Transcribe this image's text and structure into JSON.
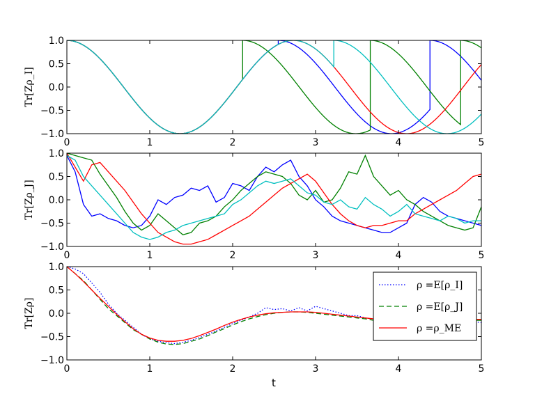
{
  "chart_data": [
    {
      "type": "line",
      "title": "",
      "xlabel": "",
      "ylabel": "Tr[Zρ_I]",
      "xlim": [
        0,
        5
      ],
      "ylim": [
        -1,
        1
      ],
      "xticks": [
        "0",
        "1",
        "2",
        "3",
        "4",
        "5"
      ],
      "yticks": [
        "1.0",
        "0.5",
        "0.0",
        "−0.5",
        "−1.0"
      ],
      "grid": false,
      "omega": 2.3,
      "series": [
        {
          "color": "#0000ff",
          "style": "solid",
          "jumps": [
            2.55,
            4.38
          ]
        },
        {
          "color": "#008000",
          "style": "solid",
          "jumps": [
            2.12,
            3.66,
            4.75
          ]
        },
        {
          "color": "#ff0000",
          "style": "solid",
          "jumps": []
        },
        {
          "color": "#00bfbf",
          "style": "solid",
          "jumps": [
            3.22
          ]
        }
      ]
    },
    {
      "type": "line",
      "title": "",
      "xlabel": "",
      "ylabel": "Tr[Zρ_J]",
      "xlim": [
        0,
        5
      ],
      "ylim": [
        -1,
        1
      ],
      "xticks": [
        "0",
        "1",
        "2",
        "3",
        "4",
        "5"
      ],
      "yticks": [
        "1.0",
        "0.5",
        "0.0",
        "−0.5",
        "−1.0"
      ],
      "grid": false,
      "series": [
        {
          "color": "#0000ff",
          "style": "solid",
          "x": [
            0,
            0.1,
            0.2,
            0.3,
            0.4,
            0.5,
            0.6,
            0.7,
            0.8,
            0.9,
            1.0,
            1.1,
            1.2,
            1.3,
            1.4,
            1.5,
            1.6,
            1.7,
            1.8,
            1.9,
            2.0,
            2.1,
            2.2,
            2.3,
            2.4,
            2.5,
            2.6,
            2.7,
            2.8,
            2.9,
            3.0,
            3.1,
            3.2,
            3.3,
            3.4,
            3.5,
            3.6,
            3.7,
            3.8,
            3.9,
            4.0,
            4.1,
            4.2,
            4.3,
            4.4,
            4.5,
            4.6,
            4.7,
            4.8,
            4.9,
            5.0
          ],
          "y": [
            0.95,
            0.6,
            -0.1,
            -0.35,
            -0.3,
            -0.4,
            -0.45,
            -0.55,
            -0.6,
            -0.55,
            -0.35,
            0.0,
            -0.1,
            0.05,
            0.1,
            0.25,
            0.2,
            0.3,
            -0.05,
            0.05,
            0.35,
            0.3,
            0.2,
            0.5,
            0.7,
            0.6,
            0.75,
            0.85,
            0.5,
            0.3,
            0.0,
            -0.15,
            -0.35,
            -0.45,
            -0.5,
            -0.55,
            -0.6,
            -0.65,
            -0.7,
            -0.7,
            -0.6,
            -0.5,
            -0.1,
            0.05,
            -0.05,
            -0.25,
            -0.35,
            -0.4,
            -0.45,
            -0.5,
            -0.55
          ]
        },
        {
          "color": "#008000",
          "style": "solid",
          "x": [
            0,
            0.1,
            0.2,
            0.3,
            0.4,
            0.5,
            0.6,
            0.7,
            0.8,
            0.9,
            1.0,
            1.1,
            1.2,
            1.3,
            1.4,
            1.5,
            1.6,
            1.7,
            1.8,
            1.9,
            2.0,
            2.1,
            2.2,
            2.3,
            2.4,
            2.5,
            2.6,
            2.7,
            2.8,
            2.9,
            3.0,
            3.1,
            3.2,
            3.3,
            3.4,
            3.5,
            3.6,
            3.7,
            3.8,
            3.9,
            4.0,
            4.1,
            4.2,
            4.3,
            4.4,
            4.5,
            4.6,
            4.7,
            4.8,
            4.9,
            5.0
          ],
          "y": [
            1.0,
            0.95,
            0.9,
            0.85,
            0.55,
            0.3,
            0.05,
            -0.25,
            -0.5,
            -0.65,
            -0.55,
            -0.3,
            -0.45,
            -0.6,
            -0.75,
            -0.7,
            -0.5,
            -0.45,
            -0.35,
            -0.15,
            0.0,
            0.2,
            0.35,
            0.5,
            0.6,
            0.55,
            0.5,
            0.35,
            0.1,
            0.0,
            0.2,
            -0.05,
            0.0,
            0.25,
            0.6,
            0.55,
            0.95,
            0.5,
            0.3,
            0.1,
            0.2,
            0.0,
            -0.1,
            -0.25,
            -0.35,
            -0.45,
            -0.55,
            -0.6,
            -0.65,
            -0.6,
            -0.15
          ]
        },
        {
          "color": "#ff0000",
          "style": "solid",
          "x": [
            0,
            0.1,
            0.2,
            0.3,
            0.4,
            0.5,
            0.6,
            0.7,
            0.8,
            0.9,
            1.0,
            1.1,
            1.2,
            1.3,
            1.4,
            1.5,
            1.6,
            1.7,
            1.8,
            1.9,
            2.0,
            2.1,
            2.2,
            2.3,
            2.4,
            2.5,
            2.6,
            2.7,
            2.8,
            2.9,
            3.0,
            3.1,
            3.2,
            3.3,
            3.4,
            3.5,
            3.6,
            3.7,
            3.8,
            3.9,
            4.0,
            4.1,
            4.2,
            4.3,
            4.4,
            4.5,
            4.6,
            4.7,
            4.8,
            4.9,
            5.0
          ],
          "y": [
            1.0,
            0.7,
            0.4,
            0.75,
            0.8,
            0.6,
            0.4,
            0.2,
            -0.05,
            -0.3,
            -0.5,
            -0.7,
            -0.8,
            -0.9,
            -0.95,
            -0.95,
            -0.9,
            -0.85,
            -0.75,
            -0.65,
            -0.55,
            -0.45,
            -0.35,
            -0.2,
            -0.05,
            0.1,
            0.25,
            0.35,
            0.45,
            0.55,
            0.4,
            0.15,
            -0.1,
            -0.3,
            -0.45,
            -0.55,
            -0.6,
            -0.55,
            -0.55,
            -0.5,
            -0.45,
            -0.45,
            -0.3,
            -0.2,
            -0.1,
            0.0,
            0.1,
            0.2,
            0.35,
            0.5,
            0.55
          ]
        },
        {
          "color": "#00bfbf",
          "style": "solid",
          "x": [
            0,
            0.1,
            0.2,
            0.3,
            0.4,
            0.5,
            0.6,
            0.7,
            0.8,
            0.9,
            1.0,
            1.1,
            1.2,
            1.3,
            1.4,
            1.5,
            1.6,
            1.7,
            1.8,
            1.9,
            2.0,
            2.1,
            2.2,
            2.3,
            2.4,
            2.5,
            2.6,
            2.7,
            2.8,
            2.9,
            3.0,
            3.1,
            3.2,
            3.3,
            3.4,
            3.5,
            3.6,
            3.7,
            3.8,
            3.9,
            4.0,
            4.1,
            4.2,
            4.3,
            4.4,
            4.5,
            4.6,
            4.7,
            4.8,
            4.9,
            5.0
          ],
          "y": [
            0.95,
            0.85,
            0.5,
            0.3,
            0.1,
            -0.1,
            -0.3,
            -0.5,
            -0.7,
            -0.8,
            -0.85,
            -0.8,
            -0.7,
            -0.65,
            -0.55,
            -0.5,
            -0.45,
            -0.4,
            -0.35,
            -0.3,
            -0.1,
            0.0,
            0.15,
            0.3,
            0.4,
            0.35,
            0.4,
            0.45,
            0.3,
            0.15,
            0.1,
            -0.05,
            -0.1,
            0.0,
            -0.15,
            -0.2,
            0.05,
            -0.1,
            -0.2,
            -0.35,
            -0.25,
            -0.1,
            -0.3,
            -0.35,
            -0.4,
            -0.45,
            -0.35,
            -0.4,
            -0.5,
            -0.45,
            -0.45
          ]
        }
      ]
    },
    {
      "type": "line",
      "title": "",
      "xlabel": "t",
      "ylabel": "Tr[Zρ]",
      "xlim": [
        0,
        5
      ],
      "ylim": [
        -1,
        1
      ],
      "xticks": [
        "0",
        "1",
        "2",
        "3",
        "4",
        "5"
      ],
      "yticks": [
        "1.0",
        "0.5",
        "0.0",
        "−0.5",
        "−1.0"
      ],
      "grid": false,
      "legend_position": "top-right",
      "series": [
        {
          "name": "ρ =E[ρ_I]",
          "color": "#0000ff",
          "style": "dotted",
          "x": [
            0,
            0.1,
            0.2,
            0.3,
            0.4,
            0.5,
            0.6,
            0.7,
            0.8,
            0.9,
            1.0,
            1.1,
            1.2,
            1.3,
            1.4,
            1.5,
            1.6,
            1.7,
            1.8,
            1.9,
            2.0,
            2.1,
            2.2,
            2.3,
            2.4,
            2.5,
            2.6,
            2.7,
            2.8,
            2.9,
            3.0,
            3.1,
            3.2,
            3.3,
            3.4,
            3.5,
            3.6,
            3.7,
            3.8,
            3.9,
            4.0,
            4.1,
            4.2,
            4.3,
            4.4,
            4.5,
            4.6,
            4.7,
            4.8,
            4.9,
            5.0
          ],
          "y": [
            1.0,
            0.95,
            0.85,
            0.65,
            0.45,
            0.2,
            0.0,
            -0.15,
            -0.3,
            -0.45,
            -0.55,
            -0.6,
            -0.63,
            -0.65,
            -0.62,
            -0.58,
            -0.52,
            -0.45,
            -0.38,
            -0.3,
            -0.22,
            -0.15,
            -0.08,
            0.0,
            0.12,
            0.08,
            0.1,
            0.05,
            0.12,
            0.05,
            0.15,
            0.1,
            0.05,
            0.0,
            -0.05,
            -0.05,
            -0.1,
            -0.12,
            -0.15,
            -0.15,
            -0.1,
            -0.12,
            -0.12,
            -0.15,
            -0.1,
            -0.15,
            -0.15,
            -0.12,
            -0.15,
            -0.18,
            -0.2
          ]
        },
        {
          "name": "ρ =E[ρ_J]",
          "color": "#008000",
          "style": "dashed",
          "x": [
            0,
            0.1,
            0.2,
            0.3,
            0.4,
            0.5,
            0.6,
            0.7,
            0.8,
            0.9,
            1.0,
            1.1,
            1.2,
            1.3,
            1.4,
            1.5,
            1.6,
            1.7,
            1.8,
            1.9,
            2.0,
            2.1,
            2.2,
            2.3,
            2.4,
            2.5,
            2.6,
            2.7,
            2.8,
            2.9,
            3.0,
            3.1,
            3.2,
            3.3,
            3.4,
            3.5,
            3.6,
            3.7,
            3.8,
            3.9,
            4.0,
            4.1,
            4.2,
            4.3,
            4.4,
            4.5,
            4.6,
            4.7,
            4.8,
            4.9,
            5.0
          ],
          "y": [
            1.0,
            0.85,
            0.7,
            0.5,
            0.3,
            0.1,
            -0.05,
            -0.2,
            -0.35,
            -0.45,
            -0.55,
            -0.62,
            -0.66,
            -0.67,
            -0.65,
            -0.6,
            -0.55,
            -0.48,
            -0.4,
            -0.33,
            -0.25,
            -0.18,
            -0.12,
            -0.07,
            -0.03,
            0.0,
            0.02,
            0.03,
            0.03,
            0.02,
            0.0,
            -0.02,
            -0.04,
            -0.06,
            -0.08,
            -0.1,
            -0.12,
            -0.15,
            -0.14,
            -0.15,
            -0.13,
            -0.14,
            -0.14,
            -0.15,
            -0.12,
            -0.14,
            -0.15,
            -0.14,
            -0.15,
            -0.15,
            -0.15
          ]
        },
        {
          "name": "ρ =ρ_ME",
          "color": "#ff0000",
          "style": "solid",
          "x": [
            0,
            0.1,
            0.2,
            0.3,
            0.4,
            0.5,
            0.6,
            0.7,
            0.8,
            0.9,
            1.0,
            1.1,
            1.2,
            1.3,
            1.4,
            1.5,
            1.6,
            1.7,
            1.8,
            1.9,
            2.0,
            2.1,
            2.2,
            2.3,
            2.4,
            2.5,
            2.6,
            2.7,
            2.8,
            2.9,
            3.0,
            3.1,
            3.2,
            3.3,
            3.4,
            3.5,
            3.6,
            3.7,
            3.8,
            3.9,
            4.0,
            4.1,
            4.2,
            4.3,
            4.4,
            4.5,
            4.6,
            4.7,
            4.8,
            4.9,
            5.0
          ],
          "y": [
            1.0,
            0.85,
            0.68,
            0.5,
            0.32,
            0.15,
            -0.02,
            -0.18,
            -0.33,
            -0.45,
            -0.53,
            -0.58,
            -0.6,
            -0.6,
            -0.58,
            -0.54,
            -0.48,
            -0.41,
            -0.34,
            -0.26,
            -0.19,
            -0.13,
            -0.08,
            -0.04,
            -0.01,
            0.01,
            0.02,
            0.03,
            0.03,
            0.03,
            0.02,
            0.0,
            -0.02,
            -0.04,
            -0.06,
            -0.08,
            -0.1,
            -0.12,
            -0.13,
            -0.14,
            -0.15,
            -0.15,
            -0.15,
            -0.15,
            -0.15,
            -0.15,
            -0.15,
            -0.14,
            -0.14,
            -0.13,
            -0.13
          ]
        }
      ]
    }
  ]
}
